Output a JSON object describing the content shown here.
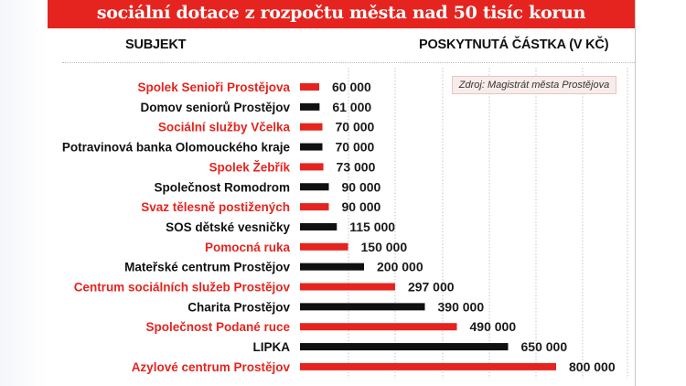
{
  "title": "sociální dotace z rozpočtu města nad 50 tisíc korun",
  "column_headers": {
    "subject": "SUBJEKT",
    "amount": "POSKYTNUTÁ ČÁSTKA (V KČ)"
  },
  "source": "Zdroj: Magistrát města Prostějova",
  "colors": {
    "accent_red": "#e5241f",
    "black": "#111111"
  },
  "chart_data": {
    "type": "bar",
    "orientation": "horizontal",
    "title": "sociální dotace z rozpočtu města nad 50 tisíc korun",
    "xlabel": "POSKYTNUTÁ ČÁSTKA (V KČ)",
    "ylabel": "SUBJEKT",
    "xlim": [
      0,
      800000
    ],
    "grid": true,
    "categories": [
      "Spolek Senioři Prostějova",
      "Domov seniorů Prostějov",
      "Sociální služby Včelka",
      "Potravinová banka Olomouckého kraje",
      "Spolek Žebřík",
      "Společnost Romodrom",
      "Svaz tělesně postižených",
      "SOS dětské vesničky",
      "Pomocná ruka",
      "Mateřské centrum Prostějov",
      "Centrum sociálních služeb Prostějov",
      "Charita Prostějov",
      "Společnost Podané ruce",
      "LIPKA",
      "Azylové centrum Prostějov"
    ],
    "values": [
      60000,
      61000,
      70000,
      70000,
      73000,
      90000,
      90000,
      115000,
      150000,
      200000,
      297000,
      390000,
      490000,
      650000,
      800000
    ],
    "value_labels": [
      "60 000",
      "61 000",
      "70 000",
      "70 000",
      "73 000",
      "90 000",
      "90 000",
      "115 000",
      "150 000",
      "200 000",
      "297 000",
      "390 000",
      "490 000",
      "650 000",
      "800 000"
    ],
    "bar_colors": [
      "#e5241f",
      "#111111",
      "#e5241f",
      "#111111",
      "#e5241f",
      "#111111",
      "#e5241f",
      "#111111",
      "#e5241f",
      "#111111",
      "#e5241f",
      "#111111",
      "#e5241f",
      "#111111",
      "#e5241f"
    ]
  }
}
